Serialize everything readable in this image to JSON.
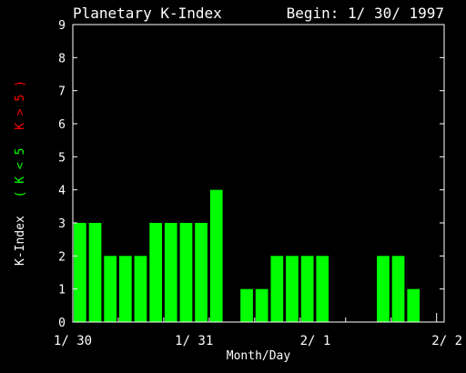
{
  "chart_data": {
    "type": "bar",
    "title": "Planetary K-Index",
    "begin_label": "Begin: 1/ 30/ 1997",
    "xlabel": "Month/Day",
    "ylabel_prefix": "K-Index",
    "ylabel_green": "( K < 5",
    "ylabel_red": "K > 5 )",
    "ylim": [
      0,
      9
    ],
    "y_ticks": [
      "0",
      "1",
      "2",
      "3",
      "4",
      "5",
      "6",
      "7",
      "8",
      "9"
    ],
    "x_tick_labels": [
      "1/ 30",
      "1/ 31",
      "2/ 1",
      "2/ 2"
    ],
    "intervals_per_day": 8,
    "values": [
      3,
      3,
      2,
      2,
      2,
      3,
      3,
      3,
      3,
      4,
      null,
      1,
      1,
      2,
      2,
      2,
      2,
      null,
      null,
      null,
      2,
      2,
      1,
      null
    ],
    "colors": {
      "normal": "#00ff00",
      "storm": "#ff0000",
      "axes": "#ffffff",
      "background": "#000000"
    }
  }
}
